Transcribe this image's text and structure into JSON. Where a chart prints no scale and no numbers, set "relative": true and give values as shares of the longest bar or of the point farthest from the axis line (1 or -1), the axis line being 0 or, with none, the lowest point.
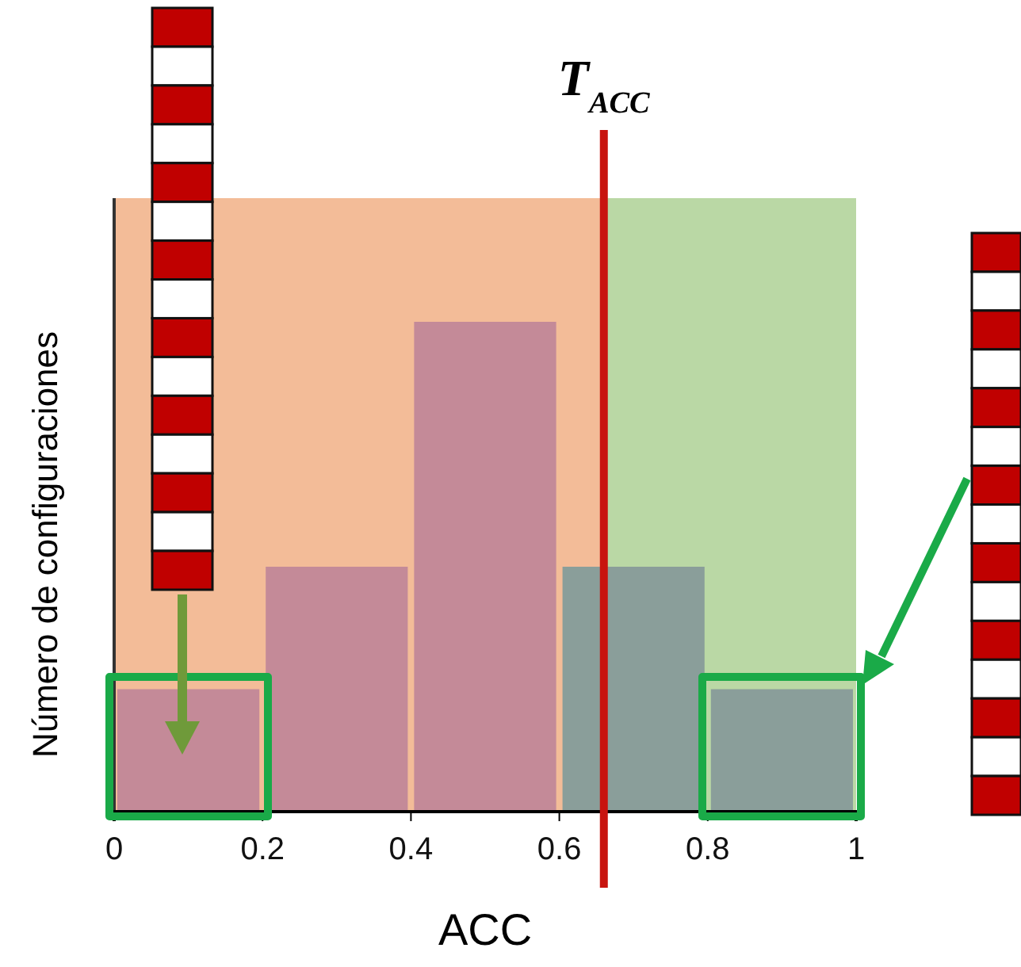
{
  "chart_data": {
    "type": "bar",
    "relative": true,
    "x": [
      0.1,
      0.3,
      0.5,
      0.7,
      0.9
    ],
    "values": [
      0.25,
      0.5,
      1,
      0.5,
      0.25
    ],
    "colors": [
      "#c48a98",
      "#c48a98",
      "#c48a98",
      "#8a9e9a",
      "#8a9e9a"
    ],
    "xlim": [
      0,
      1
    ],
    "xticks": [
      0,
      0.2,
      0.4,
      0.6,
      0.8,
      1
    ],
    "xlabel": "ACC",
    "ylabel": "Número de configuraciones",
    "ref_lines": [
      {
        "axis": "x",
        "value": 0.66,
        "label": "T$_{ACC}$",
        "color": "#c8140f"
      }
    ],
    "bands": [
      {
        "axis": "x",
        "from": 0,
        "to": 0.66,
        "color": "#f3bc98"
      },
      {
        "axis": "x",
        "from": 0.66,
        "to": 1,
        "color": "#bad8a5"
      }
    ]
  }
}
